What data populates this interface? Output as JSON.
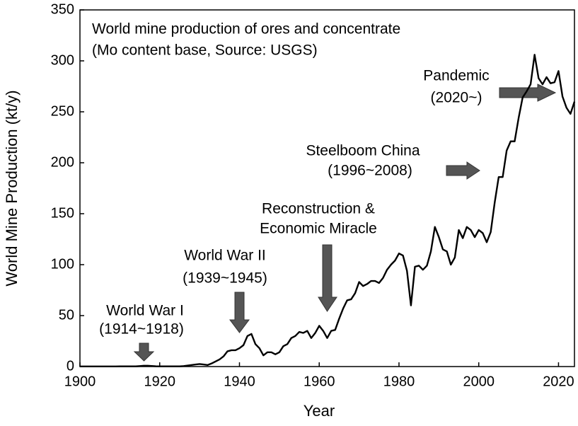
{
  "chart_data": {
    "type": "line",
    "title": "World mine production of ores and concentrate",
    "subtitle": "(Mo content base, Source: USGS)",
    "x_label": "Year",
    "y_label": "World Mine Production (kt/y)",
    "annotations": [
      "World War I",
      "(1914~1918)",
      "World War II",
      "(1939~1945)",
      "Reconstruction &",
      "Economic Miracle",
      "Steelboom China",
      "(1996~2008)",
      "Pandemic",
      "(2020~)"
    ],
    "color": "#000000",
    "xlim": [
      1900,
      2024
    ],
    "ylim": [
      0,
      350
    ],
    "xticks": [
      1900,
      1920,
      1940,
      1960,
      1980,
      2000,
      2020
    ],
    "yticks": [
      0,
      50,
      100,
      150,
      200,
      250,
      300,
      350
    ],
    "x": [
      1900,
      1901,
      1902,
      1903,
      1904,
      1905,
      1906,
      1907,
      1908,
      1909,
      1910,
      1911,
      1912,
      1913,
      1914,
      1915,
      1916,
      1917,
      1918,
      1919,
      1920,
      1921,
      1922,
      1923,
      1924,
      1925,
      1926,
      1927,
      1928,
      1929,
      1930,
      1931,
      1932,
      1933,
      1934,
      1935,
      1936,
      1937,
      1938,
      1939,
      1940,
      1941,
      1942,
      1943,
      1944,
      1945,
      1946,
      1947,
      1948,
      1949,
      1950,
      1951,
      1952,
      1953,
      1954,
      1955,
      1956,
      1957,
      1958,
      1959,
      1960,
      1961,
      1962,
      1963,
      1964,
      1965,
      1966,
      1967,
      1968,
      1969,
      1970,
      1971,
      1972,
      1973,
      1974,
      1975,
      1976,
      1977,
      1978,
      1979,
      1980,
      1981,
      1982,
      1983,
      1984,
      1985,
      1986,
      1987,
      1988,
      1989,
      1990,
      1991,
      1992,
      1993,
      1994,
      1995,
      1996,
      1997,
      1998,
      1999,
      2000,
      2001,
      2002,
      2003,
      2004,
      2005,
      2006,
      2007,
      2008,
      2009,
      2010,
      2011,
      2012,
      2013,
      2014,
      2015,
      2016,
      2017,
      2018,
      2019,
      2020,
      2021,
      2022,
      2023,
      2024
    ],
    "values": [
      0.1,
      0.1,
      0.1,
      0.1,
      0.1,
      0.1,
      0.1,
      0.1,
      0.1,
      0.1,
      0.2,
      0.2,
      0.2,
      0.2,
      0.2,
      0.5,
      0.8,
      0.8,
      0.6,
      0.3,
      0.2,
      0.2,
      0.2,
      0.2,
      0.2,
      0.2,
      0.5,
      1,
      1.5,
      2,
      2.5,
      2,
      1.5,
      3,
      5,
      7,
      10,
      15,
      16,
      16,
      18,
      21,
      30,
      32,
      22,
      18,
      11,
      14,
      14,
      12,
      14,
      20,
      22,
      28,
      30,
      34,
      33,
      35,
      28,
      33,
      40,
      35,
      28,
      35,
      36,
      47,
      57,
      65,
      66,
      72,
      83,
      79,
      81,
      84,
      84,
      82,
      87,
      95,
      100,
      104,
      111,
      109,
      94,
      60,
      98,
      99,
      95,
      99,
      113,
      137,
      127,
      115,
      113,
      100,
      107,
      134,
      126,
      137,
      134,
      127,
      134,
      131,
      122,
      132,
      161,
      186,
      186,
      212,
      221,
      221,
      244,
      264,
      270,
      277,
      306,
      283,
      277,
      284,
      278,
      279,
      290,
      265,
      254,
      248,
      260
    ]
  }
}
